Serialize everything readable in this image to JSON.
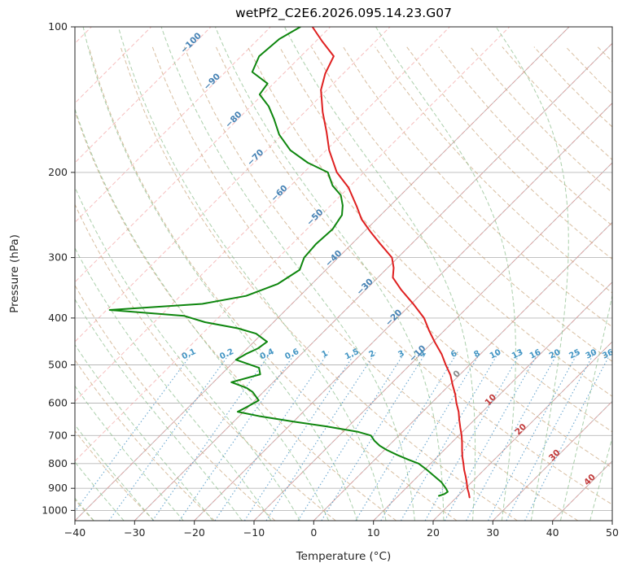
{
  "title": "wetPf2_C2E6.2026.095.14.23.G07",
  "axes": {
    "xlabel": "Temperature (°C)",
    "ylabel": "Pressure (hPa)",
    "x_ticks": [
      -40,
      -30,
      -20,
      -10,
      0,
      10,
      20,
      30,
      40,
      50
    ],
    "y_ticks": [
      100,
      200,
      300,
      400,
      500,
      600,
      700,
      800,
      900,
      1000
    ],
    "x_range": [
      -40,
      50
    ],
    "p_top": 100,
    "p_bottom": 1050,
    "skew_deg": 45,
    "grid": "on"
  },
  "colors": {
    "grid": "#b8b8b8",
    "isotherm": "#f08a8a",
    "dry_adiabat": "#c7a277",
    "moist_adiabat": "#8fbf8f",
    "mixing": "#4f97c7",
    "temperature": "#df2020",
    "dewpoint": "#0e860e",
    "label_cold": "#4682b4",
    "label_zero": "#8a8a8a",
    "label_warm": "#c23b3b",
    "mixing_label": "#4496c4",
    "axis_text": "#262626"
  },
  "chart_data": {
    "type": "skew-t",
    "temperature_unit": "°C",
    "pressure_unit": "hPa",
    "series": [
      {
        "name": "temperature",
        "color_key": "temperature"
      },
      {
        "name": "dewpoint",
        "color_key": "dewpoint"
      }
    ],
    "temperature_profile": [
      [
        100,
        -83
      ],
      [
        107,
        -79
      ],
      [
        115,
        -74.5
      ],
      [
        125,
        -73
      ],
      [
        135,
        -71
      ],
      [
        150,
        -67
      ],
      [
        165,
        -63
      ],
      [
        180,
        -59.5
      ],
      [
        200,
        -54.5
      ],
      [
        215,
        -50
      ],
      [
        235,
        -45.5
      ],
      [
        250,
        -42.5
      ],
      [
        265,
        -39
      ],
      [
        280,
        -35.5
      ],
      [
        300,
        -31
      ],
      [
        315,
        -29
      ],
      [
        330,
        -27.5
      ],
      [
        350,
        -24
      ],
      [
        375,
        -19.5
      ],
      [
        400,
        -15.5
      ],
      [
        425,
        -12.5
      ],
      [
        450,
        -9.5
      ],
      [
        475,
        -6.5
      ],
      [
        500,
        -4
      ],
      [
        525,
        -1.5
      ],
      [
        550,
        0.5
      ],
      [
        575,
        2.5
      ],
      [
        600,
        4.2
      ],
      [
        625,
        6
      ],
      [
        650,
        7.5
      ],
      [
        675,
        9
      ],
      [
        700,
        10.5
      ],
      [
        725,
        11.8
      ],
      [
        750,
        13
      ],
      [
        775,
        14.2
      ],
      [
        800,
        15.5
      ],
      [
        825,
        16.7
      ],
      [
        850,
        18
      ],
      [
        875,
        19.2
      ],
      [
        900,
        20.3
      ],
      [
        920,
        21.3
      ],
      [
        940,
        22.2
      ]
    ],
    "dewpoint_profile": [
      [
        100,
        -85
      ],
      [
        106,
        -86.5
      ],
      [
        115,
        -87
      ],
      [
        124,
        -85.5
      ],
      [
        131,
        -81
      ],
      [
        138,
        -80.5
      ],
      [
        146,
        -77
      ],
      [
        155,
        -74
      ],
      [
        167,
        -70.5
      ],
      [
        180,
        -66
      ],
      [
        191,
        -61
      ],
      [
        200,
        -56
      ],
      [
        213,
        -53
      ],
      [
        223,
        -50
      ],
      [
        234,
        -48
      ],
      [
        245,
        -46.5
      ],
      [
        262,
        -45.7
      ],
      [
        281,
        -46
      ],
      [
        300,
        -45.7
      ],
      [
        318,
        -44.4
      ],
      [
        340,
        -45.7
      ],
      [
        360,
        -49
      ],
      [
        374,
        -55
      ],
      [
        385,
        -69.5
      ],
      [
        396,
        -56
      ],
      [
        408,
        -51.5
      ],
      [
        420,
        -45
      ],
      [
        431,
        -41
      ],
      [
        448,
        -37.8
      ],
      [
        462,
        -38.2
      ],
      [
        475,
        -39.3
      ],
      [
        488,
        -40
      ],
      [
        507,
        -34.8
      ],
      [
        523,
        -33.5
      ],
      [
        543,
        -37
      ],
      [
        558,
        -33.5
      ],
      [
        569,
        -31.8
      ],
      [
        592,
        -29.4
      ],
      [
        610,
        -30.2
      ],
      [
        625,
        -31
      ],
      [
        639,
        -26.4
      ],
      [
        655,
        -20
      ],
      [
        670,
        -13.8
      ],
      [
        688,
        -7.4
      ],
      [
        700,
        -4.7
      ],
      [
        718,
        -3.2
      ],
      [
        735,
        -1.5
      ],
      [
        750,
        0.4
      ],
      [
        768,
        3
      ],
      [
        785,
        5.6
      ],
      [
        800,
        8
      ],
      [
        825,
        10.5
      ],
      [
        850,
        12.8
      ],
      [
        875,
        15
      ],
      [
        900,
        16.7
      ],
      [
        915,
        17.6
      ],
      [
        925,
        17.4
      ],
      [
        933,
        16.8
      ]
    ],
    "isotherms_c": {
      "min": -120,
      "max": 50,
      "step": 10
    },
    "dry_adiabats_theta_k": {
      "min": 233,
      "max": 453,
      "step": 10
    },
    "moist_adiabats_t0_c": {
      "min": -40,
      "max": 45,
      "step": 5
    },
    "mixing_ratio_lines_g_kg": [
      0.1,
      0.2,
      0.4,
      0.6,
      1,
      1.5,
      2,
      3,
      4,
      6,
      8,
      10,
      13,
      16,
      20,
      25,
      30,
      36
    ],
    "mixing_line_top_hpa": 455,
    "mixing_label_pressure_hpa": 480,
    "isotherm_labels": [
      {
        "t": -100,
        "p": 109
      },
      {
        "t": -90,
        "p": 131
      },
      {
        "t": -80,
        "p": 157
      },
      {
        "t": -70,
        "p": 188
      },
      {
        "t": -60,
        "p": 223
      },
      {
        "t": -50,
        "p": 250
      },
      {
        "t": -40,
        "p": 304
      },
      {
        "t": -30,
        "p": 348
      },
      {
        "t": -20,
        "p": 403
      },
      {
        "t": -10,
        "p": 478
      },
      {
        "t": 0,
        "p": 527
      },
      {
        "t": 10,
        "p": 596
      },
      {
        "t": 20,
        "p": 686
      },
      {
        "t": 30,
        "p": 776
      },
      {
        "t": 40,
        "p": 872
      }
    ]
  }
}
